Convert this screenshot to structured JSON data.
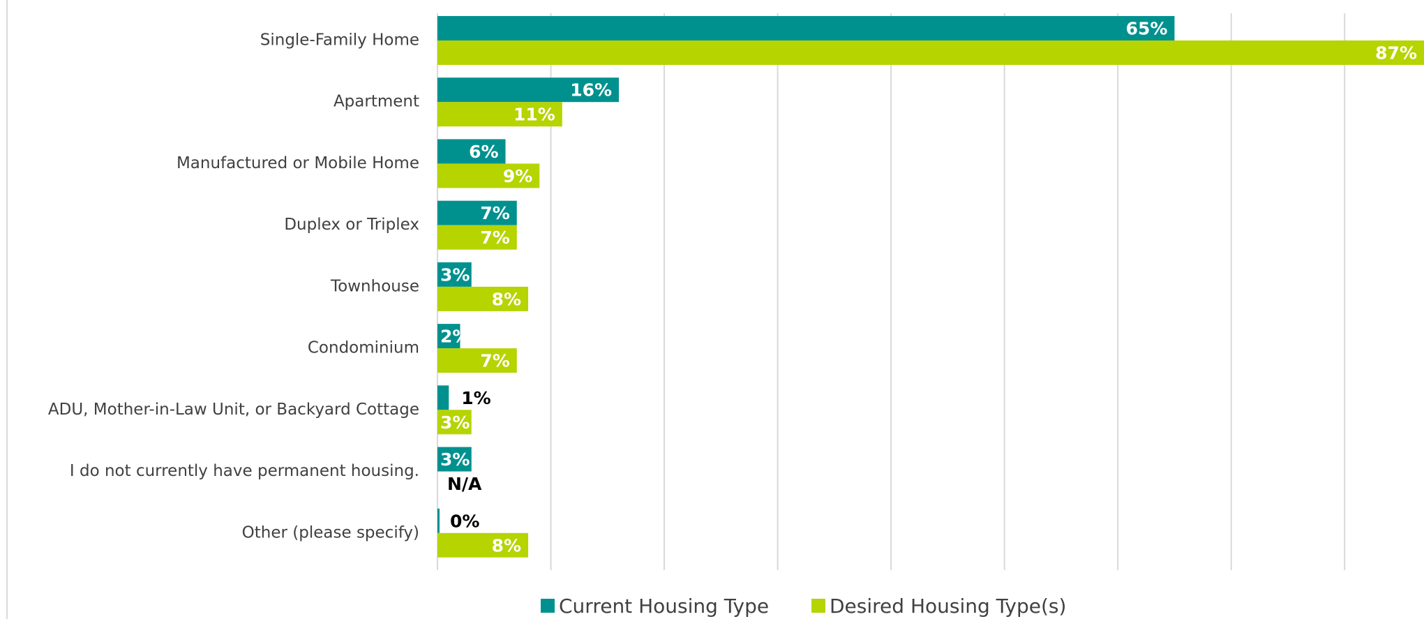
{
  "chart_data": {
    "type": "barh",
    "categories": [
      "Single-Family Home",
      "Apartment",
      "Manufactured or Mobile Home",
      "Duplex or Triplex",
      "Townhouse",
      "Condominium",
      "ADU, Mother-in-Law Unit, or Backyard Cottage",
      "I do not currently have permanent housing.",
      "Other (please specify)"
    ],
    "series": [
      {
        "name": "Current Housing Type",
        "color": "#00918f",
        "values": [
          65,
          16,
          6,
          7,
          3,
          2,
          1,
          3,
          0
        ],
        "value_labels": [
          "65%",
          "16%",
          "6%",
          "7%",
          "3%",
          "2%",
          "1%",
          "3%",
          "0%"
        ]
      },
      {
        "name": "Desired Housing Type(s)",
        "color": "#b5d400",
        "values": [
          87,
          11,
          9,
          7,
          8,
          7,
          3,
          null,
          8
        ],
        "value_labels": [
          "87%",
          "11%",
          "9%",
          "7%",
          "8%",
          "7%",
          "3%",
          "N/A",
          "8%"
        ]
      }
    ],
    "xlim": [
      0,
      87
    ],
    "xticks": [
      0,
      10,
      20,
      30,
      40,
      50,
      60,
      70,
      80
    ],
    "grid": true,
    "legend": "bottom"
  }
}
